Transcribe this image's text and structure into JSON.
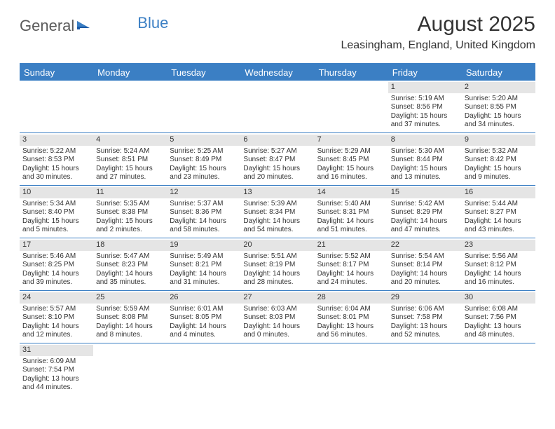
{
  "logo": {
    "text1": "General",
    "text2": "Blue"
  },
  "title": "August 2025",
  "location": "Leasingham, England, United Kingdom",
  "colors": {
    "header_bg": "#3b7fc4",
    "header_text": "#ffffff",
    "daynum_bg": "#e5e5e5",
    "text": "#333333",
    "border": "#3b7fc4"
  },
  "weekdays": [
    "Sunday",
    "Monday",
    "Tuesday",
    "Wednesday",
    "Thursday",
    "Friday",
    "Saturday"
  ],
  "weeks": [
    [
      null,
      null,
      null,
      null,
      null,
      {
        "n": "1",
        "sr": "Sunrise: 5:19 AM",
        "ss": "Sunset: 8:56 PM",
        "d1": "Daylight: 15 hours",
        "d2": "and 37 minutes."
      },
      {
        "n": "2",
        "sr": "Sunrise: 5:20 AM",
        "ss": "Sunset: 8:55 PM",
        "d1": "Daylight: 15 hours",
        "d2": "and 34 minutes."
      }
    ],
    [
      {
        "n": "3",
        "sr": "Sunrise: 5:22 AM",
        "ss": "Sunset: 8:53 PM",
        "d1": "Daylight: 15 hours",
        "d2": "and 30 minutes."
      },
      {
        "n": "4",
        "sr": "Sunrise: 5:24 AM",
        "ss": "Sunset: 8:51 PM",
        "d1": "Daylight: 15 hours",
        "d2": "and 27 minutes."
      },
      {
        "n": "5",
        "sr": "Sunrise: 5:25 AM",
        "ss": "Sunset: 8:49 PM",
        "d1": "Daylight: 15 hours",
        "d2": "and 23 minutes."
      },
      {
        "n": "6",
        "sr": "Sunrise: 5:27 AM",
        "ss": "Sunset: 8:47 PM",
        "d1": "Daylight: 15 hours",
        "d2": "and 20 minutes."
      },
      {
        "n": "7",
        "sr": "Sunrise: 5:29 AM",
        "ss": "Sunset: 8:45 PM",
        "d1": "Daylight: 15 hours",
        "d2": "and 16 minutes."
      },
      {
        "n": "8",
        "sr": "Sunrise: 5:30 AM",
        "ss": "Sunset: 8:44 PM",
        "d1": "Daylight: 15 hours",
        "d2": "and 13 minutes."
      },
      {
        "n": "9",
        "sr": "Sunrise: 5:32 AM",
        "ss": "Sunset: 8:42 PM",
        "d1": "Daylight: 15 hours",
        "d2": "and 9 minutes."
      }
    ],
    [
      {
        "n": "10",
        "sr": "Sunrise: 5:34 AM",
        "ss": "Sunset: 8:40 PM",
        "d1": "Daylight: 15 hours",
        "d2": "and 5 minutes."
      },
      {
        "n": "11",
        "sr": "Sunrise: 5:35 AM",
        "ss": "Sunset: 8:38 PM",
        "d1": "Daylight: 15 hours",
        "d2": "and 2 minutes."
      },
      {
        "n": "12",
        "sr": "Sunrise: 5:37 AM",
        "ss": "Sunset: 8:36 PM",
        "d1": "Daylight: 14 hours",
        "d2": "and 58 minutes."
      },
      {
        "n": "13",
        "sr": "Sunrise: 5:39 AM",
        "ss": "Sunset: 8:34 PM",
        "d1": "Daylight: 14 hours",
        "d2": "and 54 minutes."
      },
      {
        "n": "14",
        "sr": "Sunrise: 5:40 AM",
        "ss": "Sunset: 8:31 PM",
        "d1": "Daylight: 14 hours",
        "d2": "and 51 minutes."
      },
      {
        "n": "15",
        "sr": "Sunrise: 5:42 AM",
        "ss": "Sunset: 8:29 PM",
        "d1": "Daylight: 14 hours",
        "d2": "and 47 minutes."
      },
      {
        "n": "16",
        "sr": "Sunrise: 5:44 AM",
        "ss": "Sunset: 8:27 PM",
        "d1": "Daylight: 14 hours",
        "d2": "and 43 minutes."
      }
    ],
    [
      {
        "n": "17",
        "sr": "Sunrise: 5:46 AM",
        "ss": "Sunset: 8:25 PM",
        "d1": "Daylight: 14 hours",
        "d2": "and 39 minutes."
      },
      {
        "n": "18",
        "sr": "Sunrise: 5:47 AM",
        "ss": "Sunset: 8:23 PM",
        "d1": "Daylight: 14 hours",
        "d2": "and 35 minutes."
      },
      {
        "n": "19",
        "sr": "Sunrise: 5:49 AM",
        "ss": "Sunset: 8:21 PM",
        "d1": "Daylight: 14 hours",
        "d2": "and 31 minutes."
      },
      {
        "n": "20",
        "sr": "Sunrise: 5:51 AM",
        "ss": "Sunset: 8:19 PM",
        "d1": "Daylight: 14 hours",
        "d2": "and 28 minutes."
      },
      {
        "n": "21",
        "sr": "Sunrise: 5:52 AM",
        "ss": "Sunset: 8:17 PM",
        "d1": "Daylight: 14 hours",
        "d2": "and 24 minutes."
      },
      {
        "n": "22",
        "sr": "Sunrise: 5:54 AM",
        "ss": "Sunset: 8:14 PM",
        "d1": "Daylight: 14 hours",
        "d2": "and 20 minutes."
      },
      {
        "n": "23",
        "sr": "Sunrise: 5:56 AM",
        "ss": "Sunset: 8:12 PM",
        "d1": "Daylight: 14 hours",
        "d2": "and 16 minutes."
      }
    ],
    [
      {
        "n": "24",
        "sr": "Sunrise: 5:57 AM",
        "ss": "Sunset: 8:10 PM",
        "d1": "Daylight: 14 hours",
        "d2": "and 12 minutes."
      },
      {
        "n": "25",
        "sr": "Sunrise: 5:59 AM",
        "ss": "Sunset: 8:08 PM",
        "d1": "Daylight: 14 hours",
        "d2": "and 8 minutes."
      },
      {
        "n": "26",
        "sr": "Sunrise: 6:01 AM",
        "ss": "Sunset: 8:05 PM",
        "d1": "Daylight: 14 hours",
        "d2": "and 4 minutes."
      },
      {
        "n": "27",
        "sr": "Sunrise: 6:03 AM",
        "ss": "Sunset: 8:03 PM",
        "d1": "Daylight: 14 hours",
        "d2": "and 0 minutes."
      },
      {
        "n": "28",
        "sr": "Sunrise: 6:04 AM",
        "ss": "Sunset: 8:01 PM",
        "d1": "Daylight: 13 hours",
        "d2": "and 56 minutes."
      },
      {
        "n": "29",
        "sr": "Sunrise: 6:06 AM",
        "ss": "Sunset: 7:58 PM",
        "d1": "Daylight: 13 hours",
        "d2": "and 52 minutes."
      },
      {
        "n": "30",
        "sr": "Sunrise: 6:08 AM",
        "ss": "Sunset: 7:56 PM",
        "d1": "Daylight: 13 hours",
        "d2": "and 48 minutes."
      }
    ],
    [
      {
        "n": "31",
        "sr": "Sunrise: 6:09 AM",
        "ss": "Sunset: 7:54 PM",
        "d1": "Daylight: 13 hours",
        "d2": "and 44 minutes."
      },
      null,
      null,
      null,
      null,
      null,
      null
    ]
  ]
}
